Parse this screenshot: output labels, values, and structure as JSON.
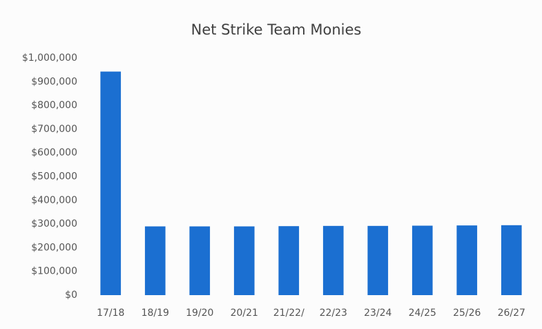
{
  "chart_data": {
    "type": "bar",
    "title": "Net Strike Team Monies",
    "categories": [
      "17/18",
      "18/19",
      "19/20",
      "20/21",
      "21/22/",
      "22/23",
      "23/24",
      "24/25",
      "25/26",
      "26/27"
    ],
    "values": [
      943000,
      290000,
      290000,
      290000,
      291000,
      292000,
      292000,
      293000,
      294000,
      295000
    ],
    "color": "#1b6fd1",
    "ylim": [
      0,
      1000000
    ],
    "yticks": [
      {
        "value": 0,
        "label": "$0"
      },
      {
        "value": 100000,
        "label": "$100,000"
      },
      {
        "value": 200000,
        "label": "$200,000"
      },
      {
        "value": 300000,
        "label": "$300,000"
      },
      {
        "value": 400000,
        "label": "$400,000"
      },
      {
        "value": 500000,
        "label": "$500,000"
      },
      {
        "value": 600000,
        "label": "$600,000"
      },
      {
        "value": 700000,
        "label": "$700,000"
      },
      {
        "value": 800000,
        "label": "$800,000"
      },
      {
        "value": 900000,
        "label": "$900,000"
      },
      {
        "value": 1000000,
        "label": "$1,000,000"
      }
    ],
    "grid": false
  }
}
